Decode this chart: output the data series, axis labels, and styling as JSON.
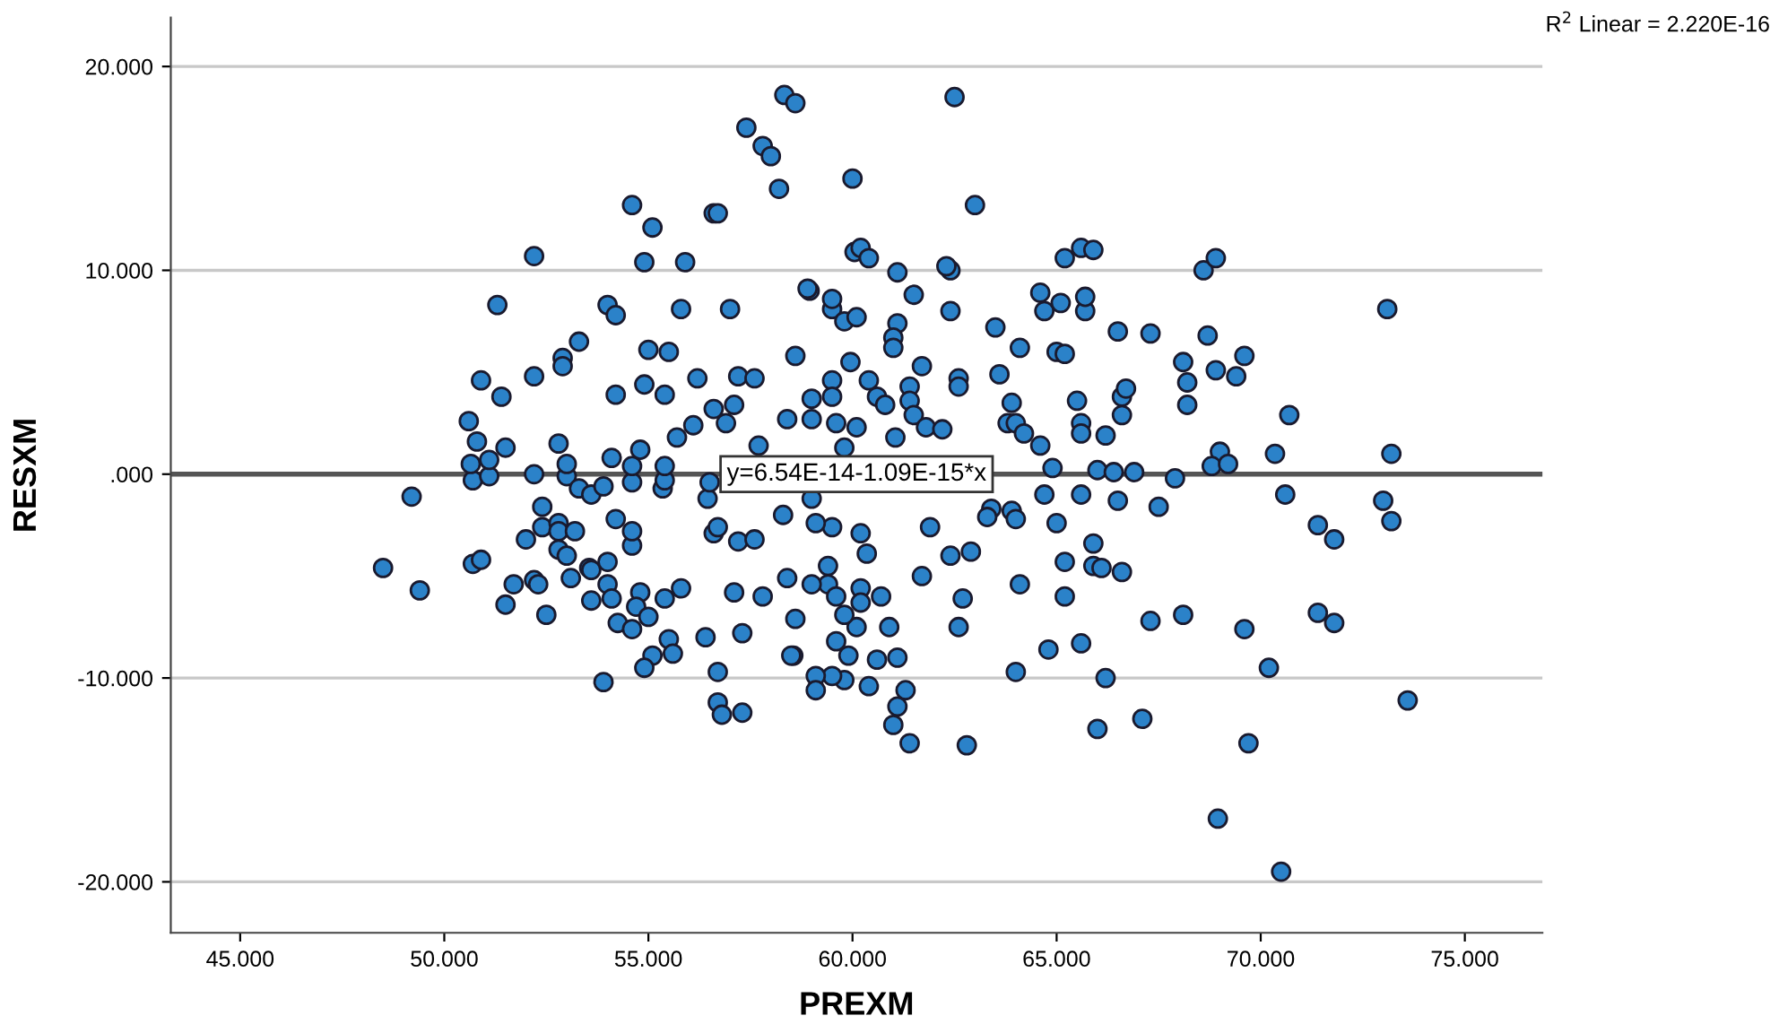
{
  "chart_data": {
    "type": "scatter",
    "xlabel": "PREXM",
    "ylabel": "RESXM",
    "xlim": [
      43.3,
      76.9
    ],
    "ylim": [
      -22.5,
      22.4
    ],
    "xticks": [
      {
        "value": 45,
        "label": "45.000"
      },
      {
        "value": 50,
        "label": "50.000"
      },
      {
        "value": 55,
        "label": "55.000"
      },
      {
        "value": 60,
        "label": "60.000"
      },
      {
        "value": 65,
        "label": "65.000"
      },
      {
        "value": 70,
        "label": "70.000"
      },
      {
        "value": 75,
        "label": "75.000"
      }
    ],
    "yticks": [
      {
        "value": -20,
        "label": "-20.000"
      },
      {
        "value": -10,
        "label": "-10.000"
      },
      {
        "value": 0,
        "label": ".000"
      },
      {
        "value": 10,
        "label": "10.000"
      },
      {
        "value": 20,
        "label": "20.000"
      }
    ],
    "grid": "y",
    "annotations": [
      {
        "text": "y=6.54E-14-1.09E-15*x",
        "x": 60.1,
        "y": 0
      },
      "R$^{2}$ Linear = 2.220E-16"
    ],
    "series": [
      {
        "marker": "circle",
        "color": "#2b82c9",
        "x": [
          58.33,
          58.6,
          62.5,
          57.4,
          57.8,
          58.0,
          58.2,
          60.0,
          54.6,
          63.0,
          56.6,
          56.7,
          55.1,
          52.2,
          54.9,
          55.9,
          60.05,
          60.2,
          60.4,
          62.4,
          65.2,
          65.6,
          68.6,
          68.9,
          51.3,
          54.0,
          54.2,
          55.8,
          57.0,
          58.95,
          59.5,
          61.1,
          62.4,
          64.6,
          64.7,
          65.7,
          73.1,
          53.3,
          52.9,
          52.9,
          55.0,
          55.5,
          50.9,
          51.4,
          52.2,
          54.2,
          54.9,
          55.4,
          56.2,
          57.2,
          57.6,
          50.6,
          50.8,
          51.5,
          52.8,
          56.1,
          56.6,
          57.1,
          56.9,
          54.1,
          54.8,
          55.7,
          58.9,
          58.6,
          58.4,
          61.1,
          62.3,
          65.9,
          59.5,
          59.8,
          60.1,
          61.5,
          63.5,
          65.1,
          65.7,
          66.5,
          67.3,
          68.7,
          61.0,
          61.0,
          64.1,
          65.0,
          65.2,
          69.6,
          59.95,
          61.7,
          68.1,
          68.9,
          69.4,
          63.6,
          59.5,
          60.4,
          61.4,
          62.6,
          62.6,
          68.2,
          68.2,
          66.6,
          66.7,
          66.6,
          59.0,
          59.5,
          60.6,
          60.8,
          61.4,
          63.9,
          65.5,
          59.0,
          59.6,
          60.1,
          61.5,
          61.8,
          62.2,
          63.8,
          64.0,
          64.2,
          65.6,
          65.6,
          66.2,
          64.6,
          59.8,
          61.05,
          69.0,
          64.9,
          66.0,
          66.4,
          66.9,
          67.9,
          68.8,
          69.2,
          70.7,
          70.35,
          73.2,
          70.6,
          73.0,
          73.2,
          71.4,
          71.8,
          69.6,
          71.4,
          71.8,
          70.2,
          73.6,
          69.7,
          70.5,
          68.95,
          66.0,
          67.1,
          66.2,
          64.0,
          65.6,
          64.8,
          67.3,
          68.1,
          62.6,
          62.7,
          64.1,
          65.2,
          65.2,
          65.9,
          66.1,
          66.6,
          65.9,
          65.0,
          67.5,
          66.5,
          65.6,
          64.7,
          63.9,
          64.0,
          63.4,
          63.3,
          62.4,
          62.9,
          61.9,
          61.7,
          60.9,
          60.6,
          61.1,
          61.3,
          61.1,
          61.0,
          61.4,
          62.8,
          60.4,
          59.8,
          59.5,
          59.1,
          59.1,
          59.9,
          59.6,
          60.1,
          59.8,
          60.2,
          60.2,
          60.7,
          59.4,
          59.6,
          59.0,
          58.6,
          58.55,
          59.4,
          60.35,
          60.2,
          59.5,
          59.1,
          59.0,
          49.2,
          48.5,
          49.4,
          50.7,
          51.1,
          50.7,
          50.9,
          51.5,
          51.7,
          52.2,
          52.3,
          52.5,
          52.0,
          52.4,
          52.4,
          52.8,
          52.8,
          53.2,
          52.8,
          53.0,
          52.2,
          53.0,
          53.3,
          53.6,
          53.9,
          54.6,
          55.35,
          55.4,
          56.45,
          56.5,
          53.55,
          53.6,
          54.0,
          53.1,
          54.0,
          54.1,
          53.6,
          54.2,
          54.6,
          54.6,
          54.8,
          54.7,
          55.0,
          54.25,
          54.6,
          55.4,
          55.8,
          55.5,
          55.6,
          55.1,
          54.9,
          53.9,
          56.4,
          56.7,
          56.7,
          56.8,
          57.3,
          57.1,
          57.8,
          57.3,
          58.5,
          58.4,
          56.6,
          56.7,
          57.2,
          57.6,
          58.3,
          50.65,
          51.1,
          53.0,
          54.6,
          55.4,
          57.7
        ],
        "values": [
          18.6,
          18.2,
          18.5,
          17.0,
          16.1,
          15.6,
          14.0,
          14.5,
          13.2,
          13.2,
          12.8,
          12.8,
          12.1,
          10.7,
          10.4,
          10.4,
          10.9,
          11.1,
          10.6,
          10.0,
          10.6,
          11.1,
          10.0,
          10.6,
          8.3,
          8.3,
          7.8,
          8.1,
          8.1,
          9.0,
          8.1,
          7.4,
          8.0,
          8.9,
          8.0,
          8.0,
          8.1,
          6.5,
          5.7,
          5.3,
          6.1,
          6.0,
          4.6,
          3.8,
          4.8,
          3.9,
          4.4,
          3.9,
          4.7,
          4.8,
          4.7,
          2.6,
          1.6,
          1.3,
          1.5,
          2.4,
          3.2,
          3.4,
          2.5,
          0.8,
          1.2,
          1.8,
          9.1,
          5.8,
          2.7,
          9.9,
          10.2,
          11.0,
          8.6,
          7.5,
          7.7,
          8.8,
          7.2,
          8.4,
          8.7,
          7.0,
          6.9,
          6.8,
          6.7,
          6.2,
          6.2,
          6.0,
          5.9,
          5.8,
          5.5,
          5.3,
          5.5,
          5.1,
          4.8,
          4.9,
          4.6,
          4.6,
          4.3,
          4.7,
          4.3,
          4.5,
          3.4,
          3.8,
          4.2,
          2.9,
          3.7,
          3.8,
          3.8,
          3.4,
          3.6,
          3.5,
          3.6,
          2.7,
          2.5,
          2.3,
          2.9,
          2.3,
          2.2,
          2.5,
          2.5,
          2.0,
          2.5,
          2.0,
          1.9,
          1.4,
          1.3,
          1.8,
          1.1,
          0.3,
          0.2,
          0.1,
          0.1,
          -0.2,
          0.4,
          0.5,
          2.9,
          1.0,
          1.0,
          -1.0,
          -1.3,
          -2.3,
          -2.5,
          -3.2,
          -7.6,
          -6.8,
          -7.3,
          -9.5,
          -11.1,
          -13.2,
          -19.5,
          -16.9,
          -12.5,
          -12.0,
          -10.0,
          -9.7,
          -8.3,
          -8.6,
          -7.2,
          -6.9,
          -7.5,
          -6.1,
          -5.4,
          -6.0,
          -4.3,
          -4.5,
          -4.6,
          -4.8,
          -3.4,
          -2.4,
          -1.6,
          -1.3,
          -1.0,
          -1.0,
          -1.8,
          -2.2,
          -1.7,
          -2.1,
          -4.0,
          -3.8,
          -2.6,
          -5.0,
          -7.5,
          -9.1,
          -9.0,
          -10.6,
          -11.4,
          -12.3,
          -13.2,
          -13.3,
          -10.4,
          -10.1,
          -9.9,
          -9.9,
          -10.6,
          -8.9,
          -8.2,
          -7.5,
          -6.9,
          -5.6,
          -6.3,
          -6.0,
          -5.4,
          -6.0,
          -5.4,
          -7.1,
          -8.9,
          -4.5,
          -3.9,
          -2.9,
          -2.6,
          -2.4,
          -1.2,
          -1.1,
          -4.6,
          -5.7,
          -0.3,
          -0.1,
          -4.4,
          -4.2,
          -6.4,
          -5.4,
          -5.2,
          -5.4,
          -6.9,
          -3.2,
          -1.6,
          -2.6,
          -2.4,
          -2.8,
          -2.8,
          -3.7,
          -4.0,
          0.0,
          -0.1,
          -0.7,
          -1.0,
          -0.6,
          -0.4,
          -0.7,
          -0.3,
          -1.2,
          -0.4,
          -4.6,
          -4.7,
          -4.3,
          -5.1,
          -5.4,
          -6.1,
          -6.2,
          -2.2,
          -3.5,
          -2.8,
          -5.8,
          -6.5,
          -7.0,
          -7.3,
          -7.6,
          -6.1,
          -5.6,
          -8.1,
          -8.8,
          -8.9,
          -9.5,
          -10.2,
          -8.0,
          -9.7,
          -11.2,
          -11.8,
          -11.7,
          -5.8,
          -6.0,
          -7.8,
          -8.9,
          -5.1,
          -2.9,
          -2.6,
          -3.3,
          -3.2,
          -2.0,
          0.5,
          0.7,
          0.5,
          0.4,
          0.4,
          1.4
        ]
      },
      {
        "type": "line",
        "color": "#555555",
        "x": [
          43.3,
          76.9
        ],
        "values": [
          0,
          0
        ]
      }
    ]
  }
}
